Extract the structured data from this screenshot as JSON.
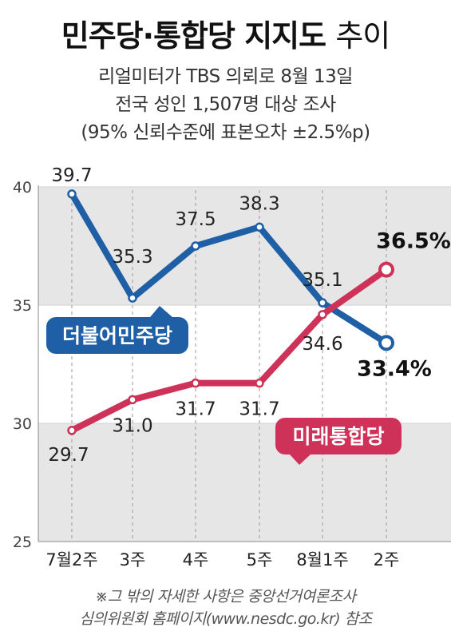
{
  "header": {
    "title_bold": "민주당·통합당 지지도",
    "title_light": "추이",
    "subtitle_lines": [
      "리얼미터가 TBS 의뢰로 8월 13일",
      "전국 성인 1,507명 대상 조사",
      "(95% 신뢰수준에 표본오차 ±2.5%p)"
    ]
  },
  "footnote": [
    "※그 밖의 자세한 사항은 중앙선거여론조사",
    "심의위원회 홈페이지(www.nesdc.go.kr) 참조"
  ],
  "colors": {
    "blue": "#1f5fa6",
    "red": "#cf3258",
    "band": "#e6e6e6"
  },
  "chart_data": {
    "type": "line",
    "categories": [
      "7월2주",
      "3주",
      "4주",
      "5주",
      "8월1주",
      "2주"
    ],
    "yticks": [
      25,
      30,
      35,
      40
    ],
    "ylim": [
      25,
      40
    ],
    "grid": "alternating horizontal bands, dashed vertical guides",
    "series": [
      {
        "name": "더불어민주당",
        "color": "#1f5fa6",
        "values": [
          39.7,
          35.3,
          37.5,
          38.3,
          35.1,
          33.4
        ],
        "labels": [
          "39.7",
          "35.3",
          "37.5",
          "38.3",
          "35.1",
          "33.4%"
        ]
      },
      {
        "name": "미래통합당",
        "color": "#cf3258",
        "values": [
          29.7,
          31.0,
          31.7,
          31.7,
          34.6,
          36.5
        ],
        "labels": [
          "29.7",
          "31.0",
          "31.7",
          "31.7",
          "34.6",
          "36.5%"
        ]
      }
    ]
  }
}
